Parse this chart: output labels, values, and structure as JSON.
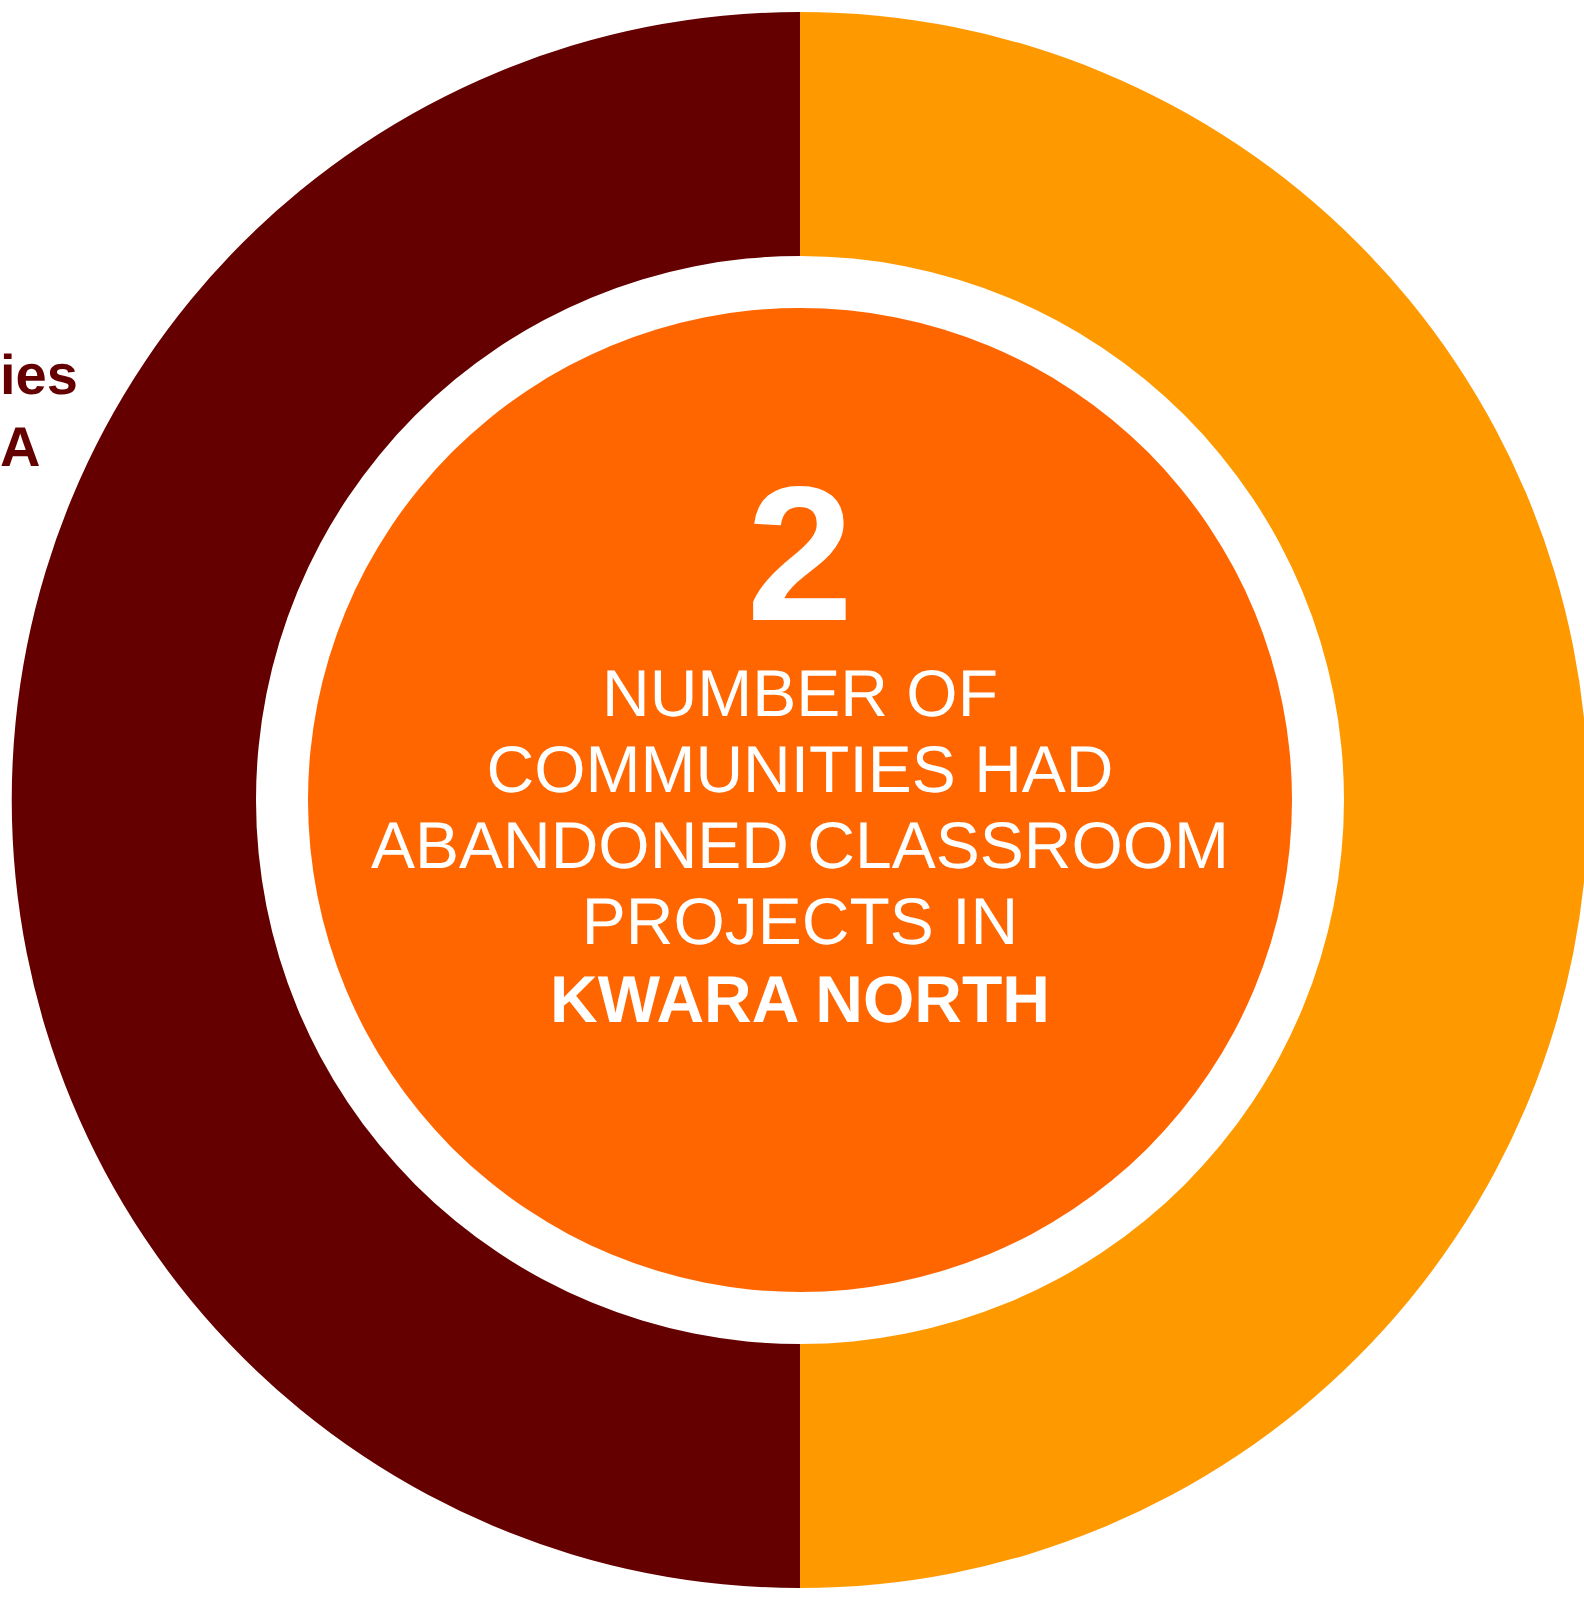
{
  "chart_data": {
    "type": "donut",
    "title": "2",
    "subtitle": "NUMBER OF\nCOMMUNITIES HAD\nABANDONED CLASSROOM\nPROJECTS IN",
    "annotations": [
      "KWARA NORTH",
      "ies",
      "A"
    ],
    "categories": [
      null,
      null
    ],
    "values": [
      50,
      50
    ],
    "colors": [
      "#ff9900",
      "#650000"
    ]
  }
}
